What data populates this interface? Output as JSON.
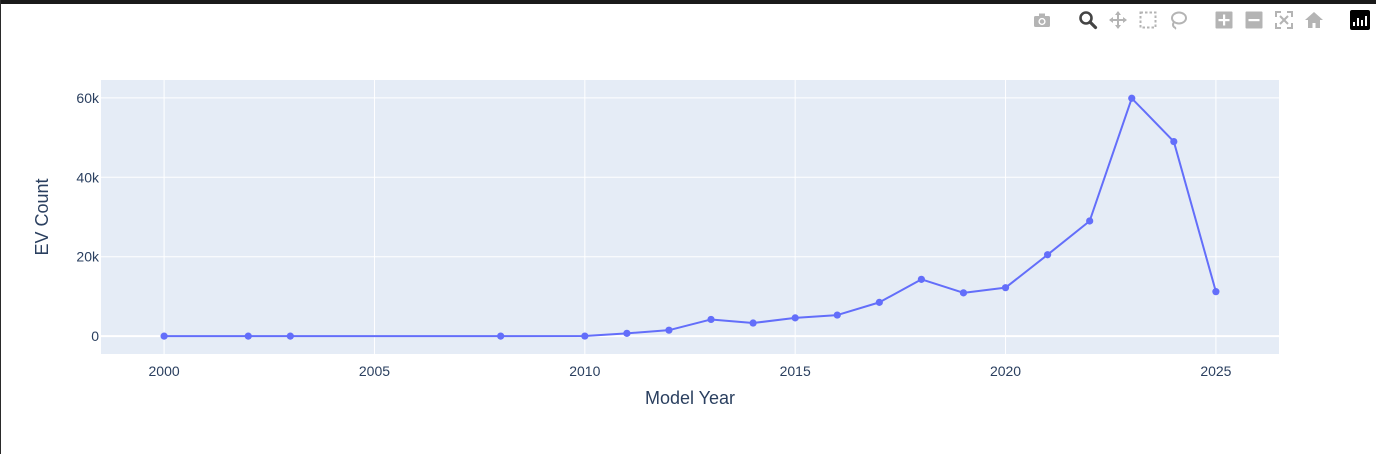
{
  "modebar": {
    "buttons": [
      {
        "name": "camera-icon",
        "title": "Download plot as a png"
      },
      {
        "name": "zoom-icon",
        "title": "Zoom"
      },
      {
        "name": "pan-icon",
        "title": "Pan"
      },
      {
        "name": "box-select-icon",
        "title": "Box Select"
      },
      {
        "name": "lasso-select-icon",
        "title": "Lasso Select"
      },
      {
        "name": "zoom-in-icon",
        "title": "Zoom in"
      },
      {
        "name": "zoom-out-icon",
        "title": "Zoom out"
      },
      {
        "name": "autoscale-icon",
        "title": "Autoscale"
      },
      {
        "name": "reset-axes-icon",
        "title": "Reset axes"
      },
      {
        "name": "plotly-logo-icon",
        "title": "Produced with Plotly"
      }
    ]
  },
  "colors": {
    "plot_bg": "#e5ecf6",
    "line": "#636efa",
    "grid": "#ffffff",
    "text": "#2a3f5f"
  },
  "chart_data": {
    "type": "line",
    "title": "",
    "xlabel": "Model Year",
    "ylabel": "EV Count",
    "x": [
      2000,
      2002,
      2003,
      2008,
      2010,
      2011,
      2012,
      2013,
      2014,
      2015,
      2016,
      2017,
      2018,
      2019,
      2020,
      2021,
      2022,
      2023,
      2024,
      2025
    ],
    "series": [
      {
        "values": [
          5,
          2,
          5,
          10,
          20,
          700,
          1500,
          4200,
          3300,
          4600,
          5300,
          8500,
          14300,
          10900,
          12200,
          20500,
          29000,
          59900,
          49000,
          11200
        ]
      }
    ],
    "xlim": [
      1998.5,
      2026.5
    ],
    "ylim": [
      -4500,
      64500
    ],
    "xticks": [
      2000,
      2005,
      2010,
      2015,
      2020,
      2025
    ],
    "xtick_labels": [
      "2000",
      "2005",
      "2010",
      "2015",
      "2020",
      "2025"
    ],
    "yticks": [
      0,
      20000,
      40000,
      60000
    ],
    "ytick_labels": [
      "0",
      "20k",
      "40k",
      "60k"
    ],
    "grid": true,
    "markers": true
  }
}
